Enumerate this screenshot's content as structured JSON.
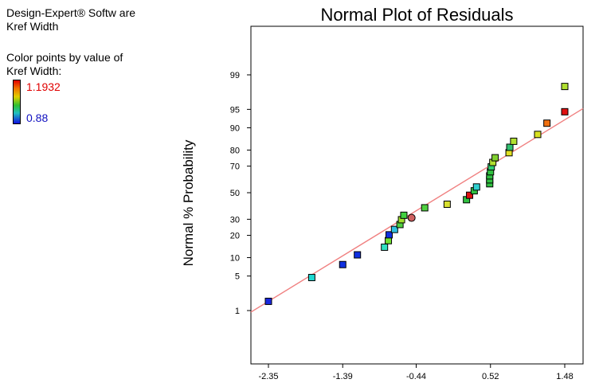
{
  "header": {
    "app": "Design-Expert® Softw are",
    "factor": "Kref Width",
    "color_caption_line1": "Color points by value of",
    "color_caption_line2": "Kref Width:",
    "color_high": "1.1932",
    "color_low": "0.88"
  },
  "colors": {
    "fit_line": "#f08080",
    "marker_highlight": "#d06060"
  },
  "chart_data": {
    "type": "scatter",
    "title": "Normal Plot of Residuals",
    "xlabel": "",
    "ylabel": "Normal % Probability",
    "y_scale": "normal-probability",
    "x_ticks": [
      "-2.35",
      "-1.39",
      "-0.44",
      "0.52",
      "1.48"
    ],
    "y_ticks": [
      "1",
      "5",
      "10",
      "20",
      "30",
      "50",
      "70",
      "80",
      "90",
      "95",
      "99"
    ],
    "grid": false,
    "legend": "color-bar-left",
    "fit_line": {
      "x": [
        -2.35,
        1.48
      ],
      "y_percent": [
        1.6,
        92.5
      ]
    },
    "series": [
      {
        "marker": "square",
        "points": [
          {
            "x": -2.35,
            "y": 1.6,
            "color": "#1a28e0"
          },
          {
            "x": -1.79,
            "y": 4.7,
            "color": "#20d8d0"
          },
          {
            "x": -1.39,
            "y": 7.8,
            "color": "#1030e0"
          },
          {
            "x": -1.2,
            "y": 11.0,
            "color": "#1030e0"
          },
          {
            "x": -0.85,
            "y": 14.1,
            "color": "#30e0c0"
          },
          {
            "x": -0.8,
            "y": 17.2,
            "color": "#70e030"
          },
          {
            "x": -0.79,
            "y": 20.3,
            "color": "#1030e0"
          },
          {
            "x": -0.72,
            "y": 23.4,
            "color": "#30c0e0"
          },
          {
            "x": -0.65,
            "y": 26.5,
            "color": "#50d040"
          },
          {
            "x": -0.63,
            "y": 29.7,
            "color": "#a0e030"
          },
          {
            "x": -0.6,
            "y": 32.8,
            "color": "#40d040"
          },
          {
            "x": -0.5,
            "y": 31.0,
            "color": "#d06060",
            "shape": "circle"
          },
          {
            "x": -0.33,
            "y": 38.3,
            "color": "#50d040"
          },
          {
            "x": -0.04,
            "y": 41.0,
            "color": "#d8e030"
          },
          {
            "x": 0.21,
            "y": 44.5,
            "color": "#30c040"
          },
          {
            "x": 0.25,
            "y": 48.0,
            "color": "#e01010"
          },
          {
            "x": 0.31,
            "y": 51.5,
            "color": "#30c040"
          },
          {
            "x": 0.34,
            "y": 54.5,
            "color": "#30d0d0"
          },
          {
            "x": 0.51,
            "y": 57.0,
            "color": "#30c040"
          },
          {
            "x": 0.51,
            "y": 60.0,
            "color": "#30c040"
          },
          {
            "x": 0.51,
            "y": 63.0,
            "color": "#30c040"
          },
          {
            "x": 0.52,
            "y": 66.0,
            "color": "#30c040"
          },
          {
            "x": 0.53,
            "y": 69.5,
            "color": "#30d070"
          },
          {
            "x": 0.55,
            "y": 72.5,
            "color": "#b0e030"
          },
          {
            "x": 0.58,
            "y": 75.5,
            "color": "#80d030"
          },
          {
            "x": 0.76,
            "y": 78.5,
            "color": "#e0e020"
          },
          {
            "x": 0.77,
            "y": 81.5,
            "color": "#30c070"
          },
          {
            "x": 0.82,
            "y": 84.5,
            "color": "#b0e030"
          },
          {
            "x": 1.13,
            "y": 87.5,
            "color": "#d8e020"
          },
          {
            "x": 1.25,
            "y": 91.5,
            "color": "#f07010"
          },
          {
            "x": 1.48,
            "y": 94.5,
            "color": "#e01010"
          },
          {
            "x": 1.48,
            "y": 98.2,
            "color": "#b0e030"
          }
        ]
      }
    ]
  }
}
